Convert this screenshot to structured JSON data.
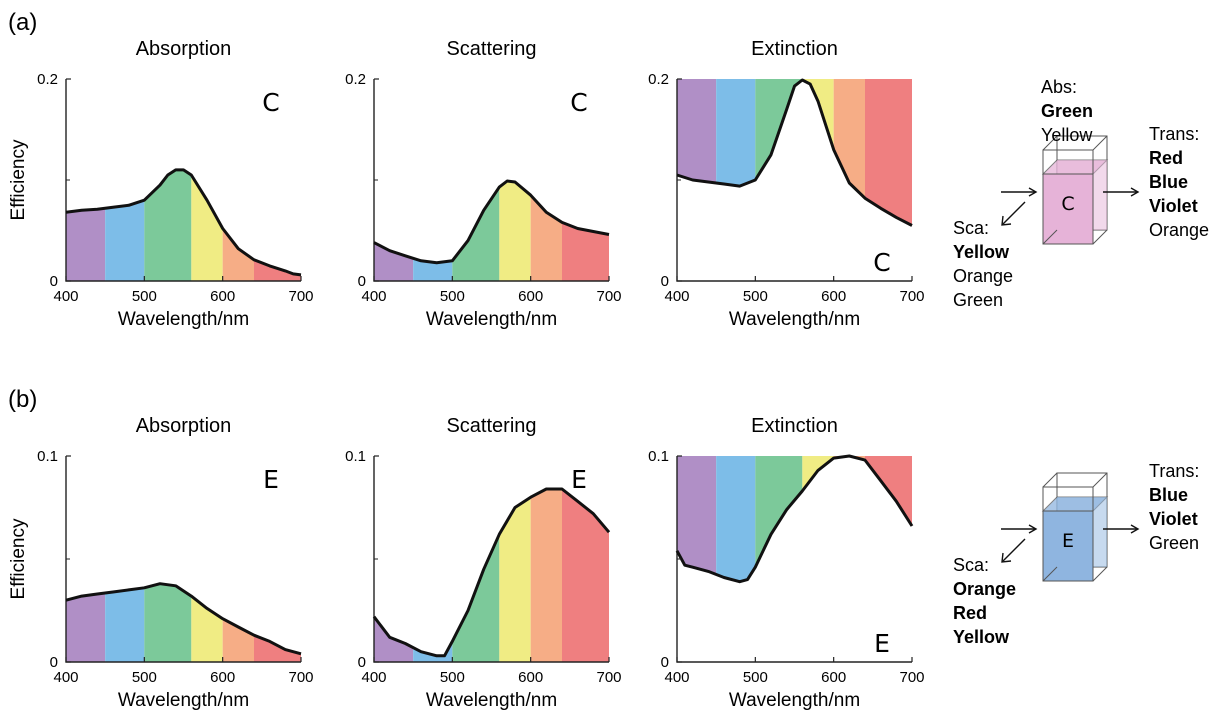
{
  "bands": [
    {
      "name": "Violet",
      "from": 400,
      "to": 450,
      "color": "#b08fc6"
    },
    {
      "name": "Blue",
      "from": 450,
      "to": 500,
      "color": "#7dbde8"
    },
    {
      "name": "Green",
      "from": 500,
      "to": 560,
      "color": "#7cc99a"
    },
    {
      "name": "Yellow",
      "from": 560,
      "to": 600,
      "color": "#f0ec84"
    },
    {
      "name": "Orange",
      "from": 600,
      "to": 640,
      "color": "#f6ad86"
    },
    {
      "name": "Red",
      "from": 640,
      "to": 700,
      "color": "#ef7f80"
    }
  ],
  "rows": [
    {
      "label": "(a)",
      "y_axis_label": "Efficiency",
      "side": {
        "particle": "C",
        "abs_title": "Abs:",
        "abs_items": [
          {
            "text": "Green",
            "bold": true
          },
          {
            "text": "Yellow",
            "bold": false
          }
        ],
        "trans_title": "Trans:",
        "trans_items": [
          {
            "text": "Red",
            "bold": true
          },
          {
            "text": "Blue",
            "bold": true
          },
          {
            "text": "Violet",
            "bold": true
          },
          {
            "text": "Orange",
            "bold": false
          }
        ],
        "sca_title": "Sca:",
        "sca_items": [
          {
            "text": "Yellow",
            "bold": true
          },
          {
            "text": "Orange",
            "bold": false
          },
          {
            "text": "Green",
            "bold": false
          }
        ],
        "box_color": "#e6b3d8"
      }
    },
    {
      "label": "(b)",
      "y_axis_label": "Efficiency",
      "side": {
        "particle": "E",
        "abs_title": "",
        "abs_items": [],
        "trans_title": "Trans:",
        "trans_items": [
          {
            "text": "Blue",
            "bold": true
          },
          {
            "text": "Violet",
            "bold": true
          },
          {
            "text": "Green",
            "bold": false
          }
        ],
        "sca_title": "Sca:",
        "sca_items": [
          {
            "text": "Orange",
            "bold": true
          },
          {
            "text": "Red",
            "bold": true
          },
          {
            "text": "Yellow",
            "bold": true
          }
        ],
        "box_color": "#8fb5e0"
      }
    }
  ],
  "chart_data": [
    {
      "type": "area",
      "title": "Absorption",
      "xlabel": "Wavelength/nm",
      "ylabel": "Efficiency",
      "letter": "C",
      "fill": "below",
      "xlim": [
        400,
        700
      ],
      "ylim": [
        0,
        0.2
      ],
      "xticks": [
        "400",
        "500",
        "600",
        "700"
      ],
      "yticks": [
        "0",
        "0.2"
      ],
      "x": [
        400,
        420,
        440,
        460,
        480,
        500,
        520,
        530,
        540,
        550,
        560,
        580,
        600,
        620,
        640,
        660,
        680,
        690,
        700
      ],
      "y": [
        0.068,
        0.07,
        0.071,
        0.073,
        0.075,
        0.08,
        0.095,
        0.105,
        0.11,
        0.11,
        0.105,
        0.08,
        0.052,
        0.032,
        0.021,
        0.015,
        0.01,
        0.007,
        0.006
      ]
    },
    {
      "type": "area",
      "title": "Scattering",
      "xlabel": "Wavelength/nm",
      "ylabel": "",
      "letter": "C",
      "fill": "below",
      "xlim": [
        400,
        700
      ],
      "ylim": [
        0,
        0.2
      ],
      "xticks": [
        "400",
        "500",
        "600",
        "700"
      ],
      "yticks": [
        "0",
        "0.2"
      ],
      "x": [
        400,
        420,
        440,
        460,
        480,
        500,
        520,
        540,
        560,
        570,
        580,
        600,
        620,
        640,
        660,
        680,
        700
      ],
      "y": [
        0.038,
        0.03,
        0.025,
        0.02,
        0.018,
        0.02,
        0.04,
        0.07,
        0.093,
        0.099,
        0.098,
        0.085,
        0.068,
        0.058,
        0.052,
        0.049,
        0.046
      ]
    },
    {
      "type": "area",
      "title": "Extinction",
      "xlabel": "Wavelength/nm",
      "ylabel": "",
      "letter": "C",
      "fill": "above",
      "xlim": [
        400,
        700
      ],
      "ylim": [
        0,
        0.2
      ],
      "xticks": [
        "400",
        "500",
        "600",
        "700"
      ],
      "yticks": [
        "0",
        "0.2"
      ],
      "x": [
        400,
        420,
        440,
        460,
        480,
        500,
        520,
        540,
        550,
        560,
        570,
        580,
        600,
        620,
        640,
        660,
        680,
        700
      ],
      "y": [
        0.105,
        0.1,
        0.098,
        0.096,
        0.094,
        0.1,
        0.125,
        0.17,
        0.193,
        0.199,
        0.195,
        0.178,
        0.13,
        0.097,
        0.082,
        0.072,
        0.063,
        0.055
      ]
    },
    {
      "type": "area",
      "title": "Absorption",
      "xlabel": "Wavelength/nm",
      "ylabel": "Efficiency",
      "letter": "E",
      "fill": "below",
      "xlim": [
        400,
        700
      ],
      "ylim": [
        0,
        0.1
      ],
      "xticks": [
        "400",
        "500",
        "600",
        "700"
      ],
      "yticks": [
        "0",
        "0.1"
      ],
      "x": [
        400,
        420,
        440,
        460,
        480,
        500,
        520,
        540,
        560,
        580,
        600,
        620,
        640,
        660,
        680,
        700
      ],
      "y": [
        0.03,
        0.032,
        0.033,
        0.034,
        0.035,
        0.036,
        0.038,
        0.037,
        0.032,
        0.026,
        0.021,
        0.017,
        0.013,
        0.01,
        0.006,
        0.004
      ]
    },
    {
      "type": "area",
      "title": "Scattering",
      "xlabel": "Wavelength/nm",
      "ylabel": "",
      "letter": "E",
      "fill": "below",
      "xlim": [
        400,
        700
      ],
      "ylim": [
        0,
        0.1
      ],
      "xticks": [
        "400",
        "500",
        "600",
        "700"
      ],
      "yticks": [
        "0",
        "0.1"
      ],
      "x": [
        400,
        420,
        440,
        460,
        480,
        490,
        500,
        520,
        540,
        560,
        580,
        600,
        620,
        640,
        660,
        680,
        700
      ],
      "y": [
        0.022,
        0.012,
        0.009,
        0.005,
        0.003,
        0.003,
        0.01,
        0.025,
        0.045,
        0.062,
        0.075,
        0.08,
        0.084,
        0.084,
        0.078,
        0.072,
        0.063
      ]
    },
    {
      "type": "area",
      "title": "Extinction",
      "xlabel": "Wavelength/nm",
      "ylabel": "",
      "letter": "E",
      "fill": "above",
      "xlim": [
        400,
        700
      ],
      "ylim": [
        0,
        0.1
      ],
      "xticks": [
        "400",
        "500",
        "600",
        "700"
      ],
      "yticks": [
        "0",
        "0.1"
      ],
      "x": [
        400,
        410,
        420,
        440,
        460,
        480,
        490,
        500,
        520,
        540,
        560,
        580,
        600,
        620,
        640,
        660,
        680,
        700
      ],
      "y": [
        0.054,
        0.047,
        0.046,
        0.044,
        0.041,
        0.039,
        0.04,
        0.046,
        0.062,
        0.074,
        0.083,
        0.093,
        0.099,
        0.1,
        0.098,
        0.088,
        0.078,
        0.066
      ]
    }
  ]
}
